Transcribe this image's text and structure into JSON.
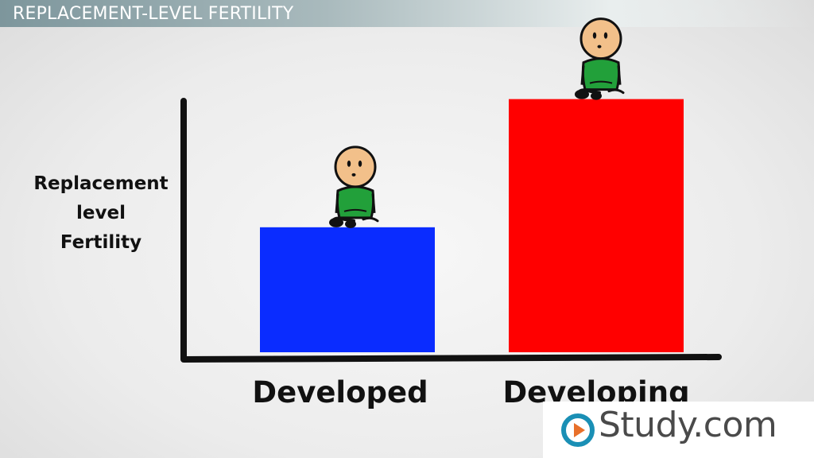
{
  "slide": {
    "title": "REPLACEMENT-LEVEL FERTILITY"
  },
  "chart_data": {
    "type": "bar",
    "title": "",
    "ylabel_lines": [
      "Replacement",
      "level",
      "Fertility"
    ],
    "xlabel": "",
    "categories": [
      "Developed",
      "Developing"
    ],
    "values": [
      0.39,
      0.79
    ],
    "ylim": [
      0,
      1
    ],
    "colors": [
      "#0a2cff",
      "#ff0000"
    ],
    "grid": false,
    "legend": "none"
  },
  "logo": {
    "text": "Study.com",
    "accent": "#e8702a",
    "ring": "#1a8fb5"
  },
  "icons": {
    "figure": "cartoon-person-icon"
  }
}
